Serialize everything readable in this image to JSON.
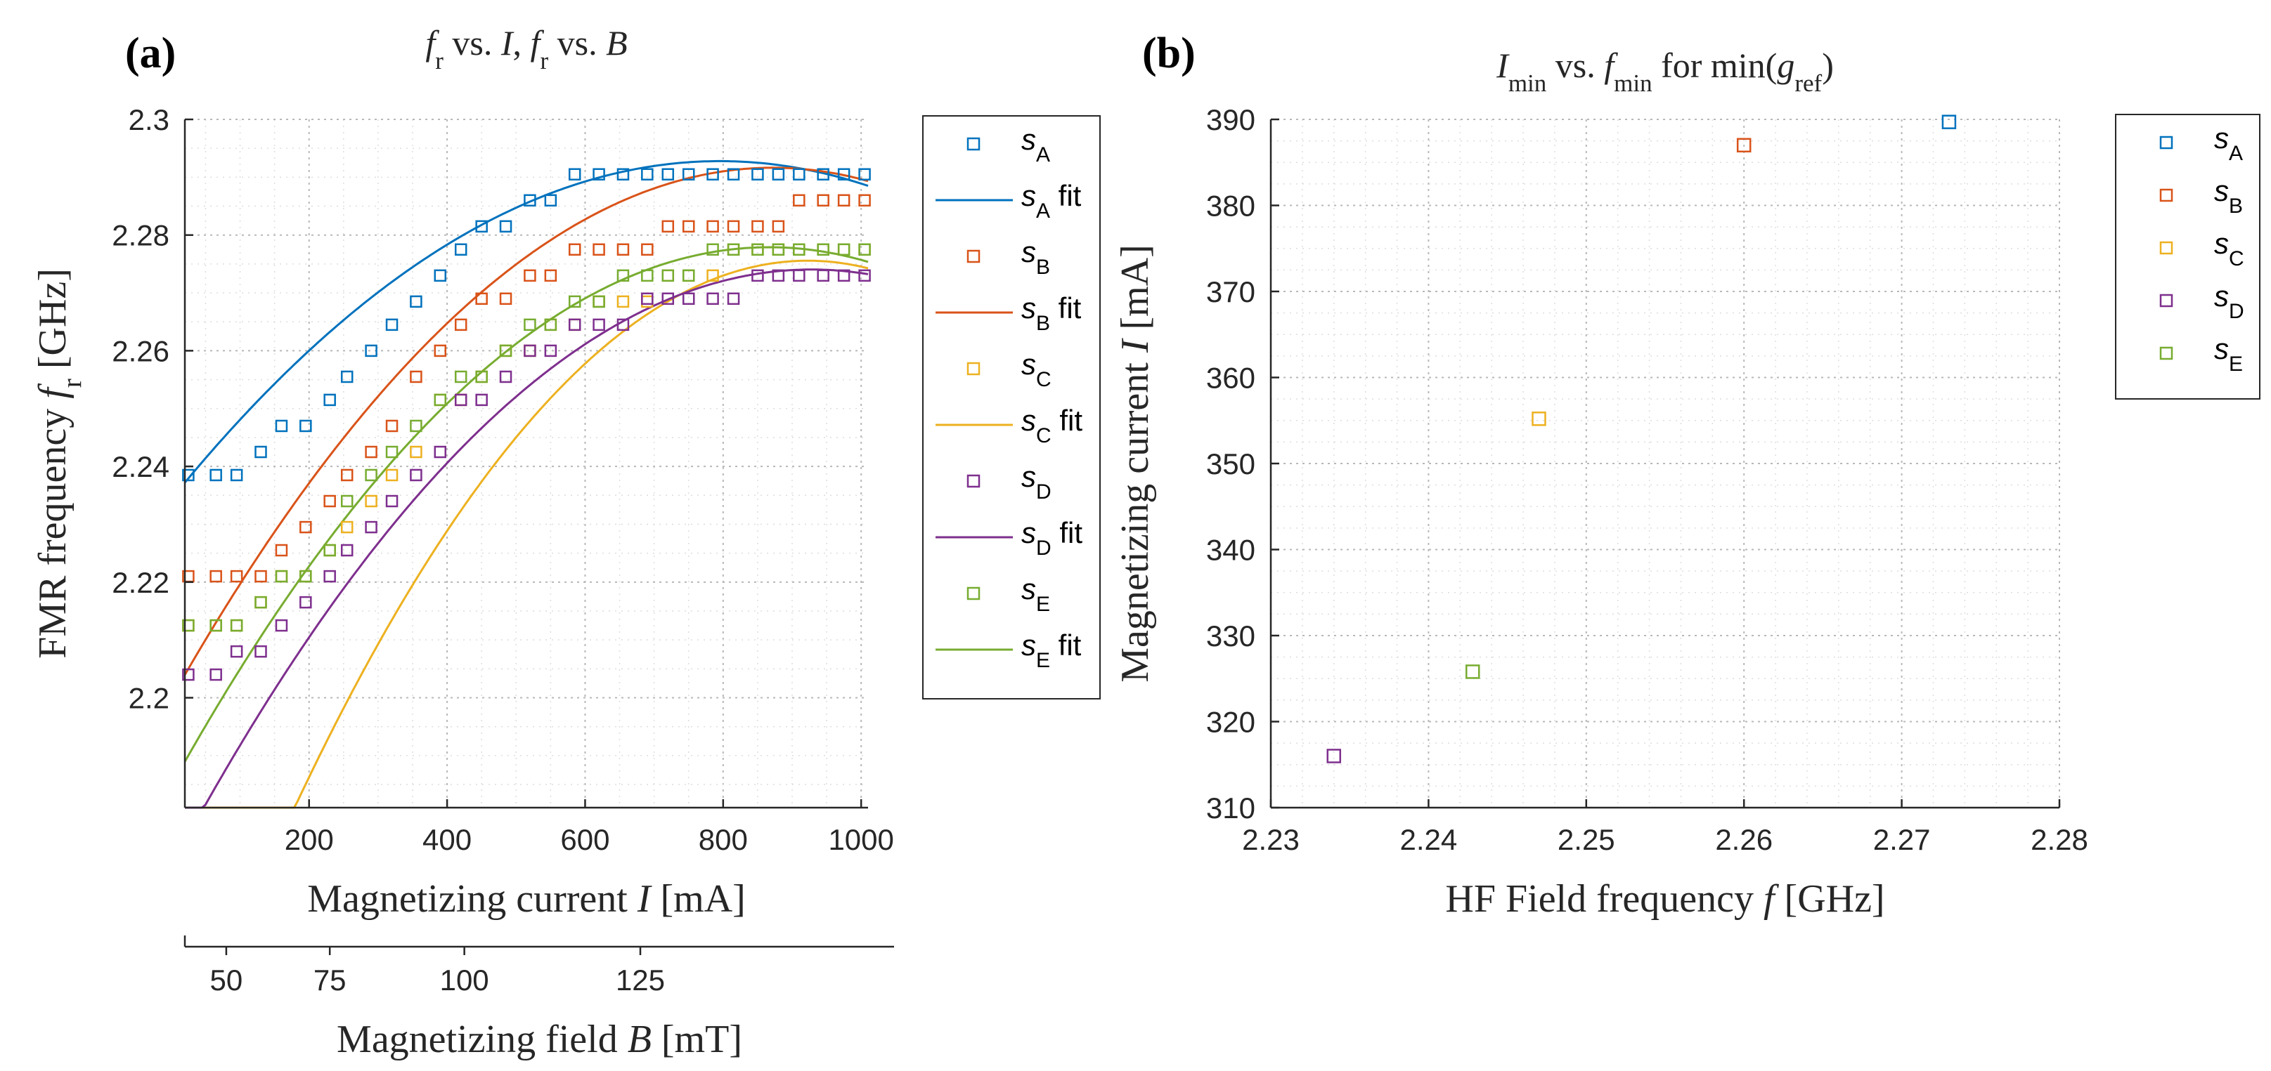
{
  "chart_data": [
    {
      "type": "scatter",
      "panel_label": "(a)",
      "title": "f_r vs. I, f_r vs. B",
      "title_parts": [
        "f",
        "r",
        " vs. ",
        "I",
        ", ",
        "f",
        "r",
        " vs. ",
        "B"
      ],
      "xlabel": "Magnetizing current I [mA]",
      "xlabel_parts": [
        "Magnetizing current ",
        "I",
        " [mA]"
      ],
      "ylabel": "FMR frequency f_r [GHz]",
      "ylabel_parts": [
        "FMR frequency ",
        "f",
        "r",
        " [GHz]"
      ],
      "xlim": [
        20,
        1010
      ],
      "ylim": [
        2.181,
        2.3
      ],
      "xticks": [
        200,
        400,
        600,
        800,
        1000
      ],
      "yticks": [
        2.2,
        2.22,
        2.24,
        2.26,
        2.28,
        2.3
      ],
      "xtick_labels": [
        "200",
        "400",
        "600",
        "800",
        "1000"
      ],
      "ytick_labels": [
        "2.2",
        "2.22",
        "2.24",
        "2.26",
        "2.28",
        "2.3"
      ],
      "grid": "on",
      "legend_position": "outside-right",
      "secondary_axis": {
        "label": "Magnetizing field B [mT]",
        "label_parts": [
          "Magnetizing field ",
          "B",
          " [mT]"
        ],
        "ticks": [
          {
            "value": 50,
            "label": "50",
            "current_mA": 80
          },
          {
            "value": 75,
            "label": "75",
            "current_mA": 230
          },
          {
            "value": 100,
            "label": "100",
            "current_mA": 425
          },
          {
            "value": 125,
            "label": "125",
            "current_mA": 680
          }
        ]
      },
      "series": [
        {
          "name": "s_A",
          "legend_main": "s",
          "legend_sub": "A",
          "fit_suffix": " fit",
          "color": "#0072BD",
          "points": [
            [
              25,
              2.2385
            ],
            [
              65,
              2.2385
            ],
            [
              95,
              2.2385
            ],
            [
              130,
              2.2425
            ],
            [
              160,
              2.247
            ],
            [
              195,
              2.247
            ],
            [
              230,
              2.2515
            ],
            [
              255,
              2.2555
            ],
            [
              290,
              2.26
            ],
            [
              320,
              2.2645
            ],
            [
              355,
              2.2685
            ],
            [
              390,
              2.273
            ],
            [
              420,
              2.2775
            ],
            [
              450,
              2.2815
            ],
            [
              485,
              2.2815
            ],
            [
              520,
              2.286
            ],
            [
              550,
              2.286
            ],
            [
              585,
              2.2905
            ],
            [
              620,
              2.2905
            ],
            [
              655,
              2.2905
            ],
            [
              690,
              2.2905
            ],
            [
              720,
              2.2905
            ],
            [
              750,
              2.2905
            ],
            [
              785,
              2.2905
            ],
            [
              815,
              2.2905
            ],
            [
              850,
              2.2905
            ],
            [
              880,
              2.2905
            ],
            [
              910,
              2.2905
            ],
            [
              945,
              2.2905
            ],
            [
              975,
              2.2905
            ],
            [
              1005,
              2.2905
            ]
          ],
          "fit": {
            "a": -9.25e-08,
            "b": 0.0001471,
            "c": 2.2343
          }
        },
        {
          "name": "s_B",
          "legend_main": "s",
          "legend_sub": "B",
          "fit_suffix": " fit",
          "color": "#D95319",
          "points": [
            [
              25,
              2.221
            ],
            [
              65,
              2.221
            ],
            [
              95,
              2.221
            ],
            [
              130,
              2.221
            ],
            [
              160,
              2.2255
            ],
            [
              195,
              2.2295
            ],
            [
              230,
              2.234
            ],
            [
              255,
              2.2385
            ],
            [
              290,
              2.2425
            ],
            [
              320,
              2.247
            ],
            [
              355,
              2.2555
            ],
            [
              390,
              2.26
            ],
            [
              420,
              2.2645
            ],
            [
              450,
              2.269
            ],
            [
              485,
              2.269
            ],
            [
              520,
              2.273
            ],
            [
              550,
              2.273
            ],
            [
              585,
              2.2775
            ],
            [
              620,
              2.2775
            ],
            [
              655,
              2.2775
            ],
            [
              690,
              2.2775
            ],
            [
              720,
              2.2815
            ],
            [
              750,
              2.2815
            ],
            [
              785,
              2.2815
            ],
            [
              815,
              2.2815
            ],
            [
              850,
              2.2815
            ],
            [
              880,
              2.2815
            ],
            [
              910,
              2.286
            ],
            [
              945,
              2.286
            ],
            [
              975,
              2.286
            ],
            [
              1005,
              2.286
            ]
          ],
          "fit": {
            "a": -1.208e-07,
            "b": 0.00021066,
            "c": 2.1998
          }
        },
        {
          "name": "s_C",
          "legend_main": "s",
          "legend_sub": "C",
          "fit_suffix": " fit",
          "color": "#EDB120",
          "points": [
            [
              25,
              2.2125
            ],
            [
              65,
              2.2125
            ],
            [
              95,
              2.2125
            ],
            [
              130,
              2.2165
            ],
            [
              160,
              2.221
            ],
            [
              195,
              2.221
            ],
            [
              230,
              2.2255
            ],
            [
              255,
              2.2295
            ],
            [
              290,
              2.234
            ],
            [
              320,
              2.2385
            ],
            [
              355,
              2.2425
            ],
            [
              390,
              2.2515
            ],
            [
              420,
              2.2515
            ],
            [
              450,
              2.2555
            ],
            [
              485,
              2.26
            ],
            [
              520,
              2.26
            ],
            [
              550,
              2.2645
            ],
            [
              585,
              2.2645
            ],
            [
              620,
              2.2685
            ],
            [
              655,
              2.2685
            ],
            [
              690,
              2.2685
            ],
            [
              720,
              2.273
            ],
            [
              750,
              2.273
            ],
            [
              785,
              2.273
            ],
            [
              815,
              2.2775
            ],
            [
              850,
              2.2775
            ],
            [
              880,
              2.2775
            ],
            [
              910,
              2.2775
            ],
            [
              945,
              2.2775
            ],
            [
              975,
              2.2775
            ],
            [
              1005,
              2.2775
            ]
          ],
          "fit": {
            "a": -1.71e-07,
            "b": 0.00031554,
            "c": 2.13
          }
        },
        {
          "name": "s_D",
          "legend_main": "s",
          "legend_sub": "D",
          "fit_suffix": " fit",
          "color": "#7E2F8E",
          "points": [
            [
              25,
              2.204
            ],
            [
              65,
              2.204
            ],
            [
              95,
              2.208
            ],
            [
              130,
              2.208
            ],
            [
              160,
              2.2125
            ],
            [
              195,
              2.2165
            ],
            [
              230,
              2.221
            ],
            [
              255,
              2.2255
            ],
            [
              290,
              2.2295
            ],
            [
              320,
              2.234
            ],
            [
              355,
              2.2385
            ],
            [
              390,
              2.2425
            ],
            [
              420,
              2.2515
            ],
            [
              450,
              2.2515
            ],
            [
              485,
              2.2555
            ],
            [
              520,
              2.26
            ],
            [
              550,
              2.26
            ],
            [
              585,
              2.2645
            ],
            [
              620,
              2.2645
            ],
            [
              655,
              2.2645
            ],
            [
              690,
              2.269
            ],
            [
              720,
              2.269
            ],
            [
              750,
              2.269
            ],
            [
              785,
              2.269
            ],
            [
              815,
              2.269
            ],
            [
              850,
              2.273
            ],
            [
              880,
              2.273
            ],
            [
              910,
              2.273
            ],
            [
              945,
              2.273
            ],
            [
              975,
              2.273
            ],
            [
              1005,
              2.273
            ]
          ],
          "fit": {
            "a": -1.2e-07,
            "b": 0.00022272,
            "c": 2.1707
          }
        },
        {
          "name": "s_E",
          "legend_main": "s",
          "legend_sub": "E",
          "fit_suffix": " fit",
          "color": "#77AC30",
          "points": [
            [
              25,
              2.2125
            ],
            [
              65,
              2.2125
            ],
            [
              95,
              2.2125
            ],
            [
              130,
              2.2165
            ],
            [
              160,
              2.221
            ],
            [
              195,
              2.221
            ],
            [
              230,
              2.2255
            ],
            [
              255,
              2.234
            ],
            [
              290,
              2.2385
            ],
            [
              320,
              2.2425
            ],
            [
              355,
              2.247
            ],
            [
              390,
              2.2515
            ],
            [
              420,
              2.2555
            ],
            [
              450,
              2.2555
            ],
            [
              485,
              2.26
            ],
            [
              520,
              2.2645
            ],
            [
              550,
              2.2645
            ],
            [
              585,
              2.2685
            ],
            [
              620,
              2.2685
            ],
            [
              655,
              2.273
            ],
            [
              690,
              2.273
            ],
            [
              720,
              2.273
            ],
            [
              750,
              2.273
            ],
            [
              785,
              2.2775
            ],
            [
              815,
              2.2775
            ],
            [
              850,
              2.2775
            ],
            [
              880,
              2.2775
            ],
            [
              910,
              2.2775
            ],
            [
              945,
              2.2775
            ],
            [
              975,
              2.2775
            ],
            [
              1005,
              2.2775
            ]
          ],
          "fit": {
            "a": -1.24e-07,
            "b": 0.000215,
            "c": 2.1847
          }
        }
      ]
    },
    {
      "type": "scatter",
      "panel_label": "(b)",
      "title": "I_min vs. f_min for min(g_ref)",
      "title_parts": [
        "I",
        "min",
        " vs. ",
        "f",
        "min",
        " for min(",
        "g",
        "ref",
        ")"
      ],
      "xlabel": "HF Field frequency f [GHz]",
      "xlabel_parts": [
        "HF Field frequency ",
        "f",
        " [GHz]"
      ],
      "ylabel": "Magnetizing current I [mA]",
      "ylabel_parts": [
        "Magnetizing current ",
        "I",
        " [mA]"
      ],
      "xlim": [
        2.23,
        2.28
      ],
      "ylim": [
        310,
        390
      ],
      "xticks": [
        2.23,
        2.24,
        2.25,
        2.26,
        2.27,
        2.28
      ],
      "yticks": [
        310,
        320,
        330,
        340,
        350,
        360,
        370,
        380,
        390
      ],
      "xtick_labels": [
        "2.23",
        "2.24",
        "2.25",
        "2.26",
        "2.27",
        "2.28"
      ],
      "ytick_labels": [
        "310",
        "320",
        "330",
        "340",
        "350",
        "360",
        "370",
        "380",
        "390"
      ],
      "grid": "on",
      "legend_position": "outside-right",
      "series": [
        {
          "name": "s_A",
          "legend_main": "s",
          "legend_sub": "A",
          "color": "#0072BD",
          "points": [
            [
              2.273,
              389.7
            ]
          ]
        },
        {
          "name": "s_B",
          "legend_main": "s",
          "legend_sub": "B",
          "color": "#D95319",
          "points": [
            [
              2.26,
              387.0
            ]
          ]
        },
        {
          "name": "s_C",
          "legend_main": "s",
          "legend_sub": "C",
          "color": "#EDB120",
          "points": [
            [
              2.247,
              355.2
            ]
          ]
        },
        {
          "name": "s_D",
          "legend_main": "s",
          "legend_sub": "D",
          "color": "#7E2F8E",
          "points": [
            [
              2.234,
              316.0
            ]
          ]
        },
        {
          "name": "s_E",
          "legend_main": "s",
          "legend_sub": "E",
          "color": "#77AC30",
          "points": [
            [
              2.2428,
              325.8
            ]
          ]
        }
      ]
    }
  ]
}
